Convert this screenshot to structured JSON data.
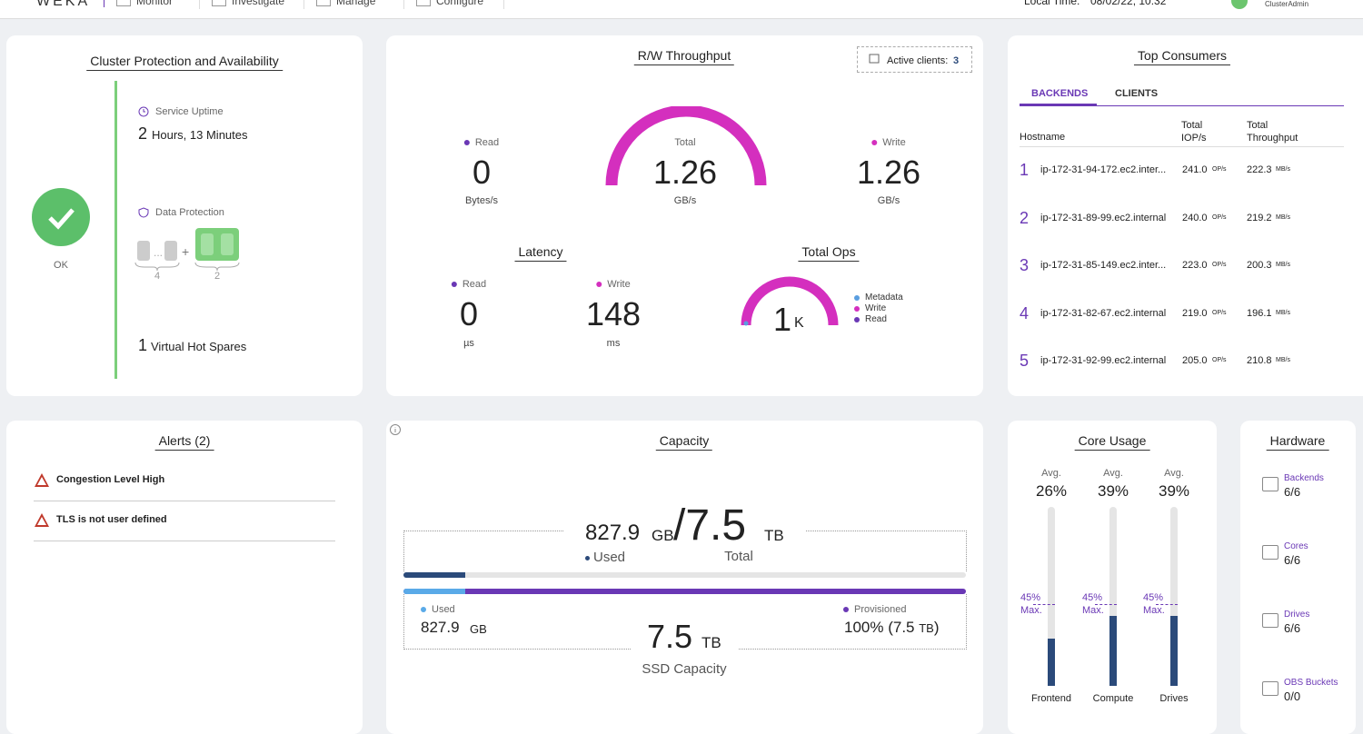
{
  "nav": {
    "logo": "WEKA",
    "items": [
      "Monitor",
      "Investigate",
      "Manage",
      "Configure"
    ],
    "local_time_label": "Local Time:",
    "local_time": "08/02/22, 10:32",
    "user": "ClusterAdmin"
  },
  "protection": {
    "title": "Cluster Protection and Availability",
    "status": "OK",
    "uptime_label": "Service Uptime",
    "uptime_number": "2",
    "uptime_unit": "Hours, 13 Minutes",
    "data_protection_label": "Data Protection",
    "data_drives": "4",
    "parity_drives": "2",
    "hot_spares_number": "1",
    "hot_spares_label": "Virtual Hot Spares"
  },
  "throughput": {
    "title": "R/W Throughput",
    "active_clients_label": "Active clients:",
    "active_clients": "3",
    "read": {
      "label": "Read",
      "value": "0",
      "unit": "Bytes/s"
    },
    "total": {
      "label": "Total",
      "value": "1.26",
      "unit": "GB/s"
    },
    "write": {
      "label": "Write",
      "value": "1.26",
      "unit": "GB/s"
    }
  },
  "latency": {
    "title": "Latency",
    "read": {
      "label": "Read",
      "value": "0",
      "unit": "µs"
    },
    "write": {
      "label": "Write",
      "value": "148",
      "unit": "ms"
    }
  },
  "total_ops": {
    "title": "Total Ops",
    "value": "1",
    "unit": "K",
    "legend": [
      "Metadata",
      "Write",
      "Read"
    ]
  },
  "top_consumers": {
    "title": "Top Consumers",
    "tabs": [
      "BACKENDS",
      "CLIENTS"
    ],
    "columns": [
      "Hostname",
      "Total IOP/s",
      "Total Throughput"
    ],
    "rows": [
      [
        "1",
        "ip-172-31-94-172.ec2.inter...",
        "241.0",
        "OP/s",
        "222.3",
        "MB/s"
      ],
      [
        "2",
        "ip-172-31-89-99.ec2.internal",
        "240.0",
        "OP/s",
        "219.2",
        "MB/s"
      ],
      [
        "3",
        "ip-172-31-85-149.ec2.inter...",
        "223.0",
        "OP/s",
        "200.3",
        "MB/s"
      ],
      [
        "4",
        "ip-172-31-82-67.ec2.internal",
        "219.0",
        "OP/s",
        "196.1",
        "MB/s"
      ],
      [
        "5",
        "ip-172-31-92-99.ec2.internal",
        "205.0",
        "OP/s",
        "210.8",
        "MB/s"
      ]
    ]
  },
  "alerts": {
    "title": "Alerts (2)",
    "items": [
      "Congestion Level High",
      "TLS is not user defined"
    ]
  },
  "capacity": {
    "title": "Capacity",
    "used_value": "827.9",
    "used_unit": "GB",
    "total_value": "/7.5",
    "total_unit": "TB",
    "used_label": "Used",
    "total_label": "Total",
    "legend_used_label": "Used",
    "legend_used_value": "827.9",
    "legend_used_unit": "GB",
    "provisioned_label": "Provisioned",
    "provisioned_value": "100% (7.5",
    "provisioned_unit": "TB",
    "provisioned_close": ")",
    "ssd_value": "7.5",
    "ssd_unit": "TB",
    "ssd_label": "SSD Capacity"
  },
  "core_usage": {
    "title": "Core Usage",
    "columns": [
      {
        "avg_label": "Avg.",
        "avg": "26%",
        "max": "45%",
        "max_label": "Max.",
        "name": "Frontend"
      },
      {
        "avg_label": "Avg.",
        "avg": "39%",
        "max": "45%",
        "max_label": "Max.",
        "name": "Compute"
      },
      {
        "avg_label": "Avg.",
        "avg": "39%",
        "max": "45%",
        "max_label": "Max.",
        "name": "Drives"
      }
    ]
  },
  "hardware": {
    "title": "Hardware",
    "items": [
      {
        "label": "Backends",
        "value": "6/6"
      },
      {
        "label": "Cores",
        "value": "6/6"
      },
      {
        "label": "Drives",
        "value": "6/6"
      },
      {
        "label": "OBS Buckets",
        "value": "0/0"
      }
    ]
  }
}
